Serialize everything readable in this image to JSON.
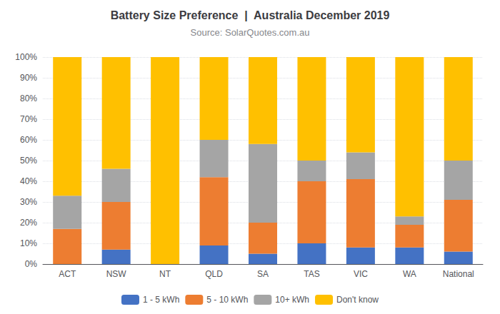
{
  "chart_data": {
    "type": "bar",
    "title": "Battery Size Preference  |  Australia December 2019",
    "subtitle": "Source: SolarQuotes.com.au",
    "categories": [
      "ACT",
      "NSW",
      "NT",
      "QLD",
      "SA",
      "TAS",
      "VIC",
      "WA",
      "National"
    ],
    "series": [
      {
        "name": "1 - 5 kWh",
        "color": "#4472c4",
        "values": [
          0,
          7,
          0,
          9,
          5,
          10,
          8,
          8,
          6
        ]
      },
      {
        "name": "5 - 10 kWh",
        "color": "#ed7d31",
        "values": [
          17,
          23,
          0,
          33,
          15,
          30,
          33,
          11,
          25
        ]
      },
      {
        "name": "10+ kWh",
        "color": "#a5a5a5",
        "values": [
          16,
          16,
          0,
          18,
          38,
          10,
          13,
          4,
          19
        ]
      },
      {
        "name": "Don't know",
        "color": "#ffc000",
        "values": [
          67,
          54,
          100,
          40,
          42,
          50,
          46,
          77,
          50
        ]
      }
    ],
    "stacked": true,
    "ylim": [
      0,
      100
    ],
    "yticks": [
      {
        "value": 0,
        "label": "0%"
      },
      {
        "value": 10,
        "label": "10%"
      },
      {
        "value": 20,
        "label": "20%"
      },
      {
        "value": 30,
        "label": "30%"
      },
      {
        "value": 40,
        "label": "40%"
      },
      {
        "value": 50,
        "label": "50%"
      },
      {
        "value": 60,
        "label": "60%"
      },
      {
        "value": 70,
        "label": "70%"
      },
      {
        "value": 80,
        "label": "80%"
      },
      {
        "value": 90,
        "label": "90%"
      },
      {
        "value": 100,
        "label": "100%"
      }
    ],
    "grid": true,
    "legend": "bottom"
  }
}
